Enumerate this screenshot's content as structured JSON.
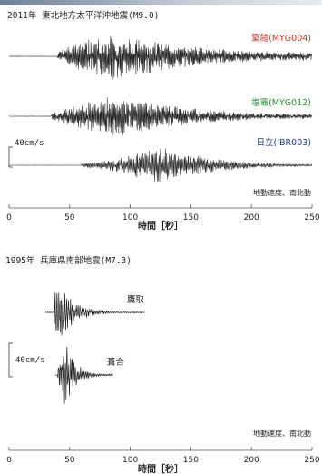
{
  "chart_data": [
    {
      "type": "line",
      "title": "2011年  東北地方太平洋沖地震(M9.0)",
      "xlabel": "時間［秒］",
      "xlim": [
        0,
        250
      ],
      "xticks": [
        0,
        50,
        100,
        150,
        200,
        250
      ],
      "scale_bar": "40cm/s",
      "component_note": "地動速度、南北動",
      "series": [
        {
          "name": "築館(MYG004)",
          "color": "#c0392b",
          "onset_s": 40,
          "peak_s": 88,
          "end_s": 250,
          "peak_cm_s": 50
        },
        {
          "name": "塩竈(MYG012)",
          "color": "#2e8b3d",
          "onset_s": 35,
          "peak_s": 88,
          "end_s": 250,
          "peak_cm_s": 45
        },
        {
          "name": "日立(IBR003)",
          "color": "#1f3a93",
          "onset_s": 60,
          "peak_s": 125,
          "end_s": 250,
          "peak_cm_s": 40
        }
      ]
    },
    {
      "type": "line",
      "title": "1995年  兵庫県南部地震(M7.3)",
      "xlabel": "時間［秒］",
      "xlim": [
        0,
        250
      ],
      "xticks": [
        0,
        50,
        100,
        150,
        200,
        250
      ],
      "scale_bar": "40cm/s",
      "component_note": "地動速度、南北動",
      "series": [
        {
          "name": "鷹取",
          "color": "#222222",
          "onset_s": 37,
          "peak_s": 40,
          "end_s": 110,
          "peak_cm_s": 100
        },
        {
          "name": "葺合",
          "color": "#222222",
          "onset_s": 40,
          "peak_s": 47,
          "end_s": 85,
          "peak_cm_s": 90
        }
      ]
    }
  ]
}
